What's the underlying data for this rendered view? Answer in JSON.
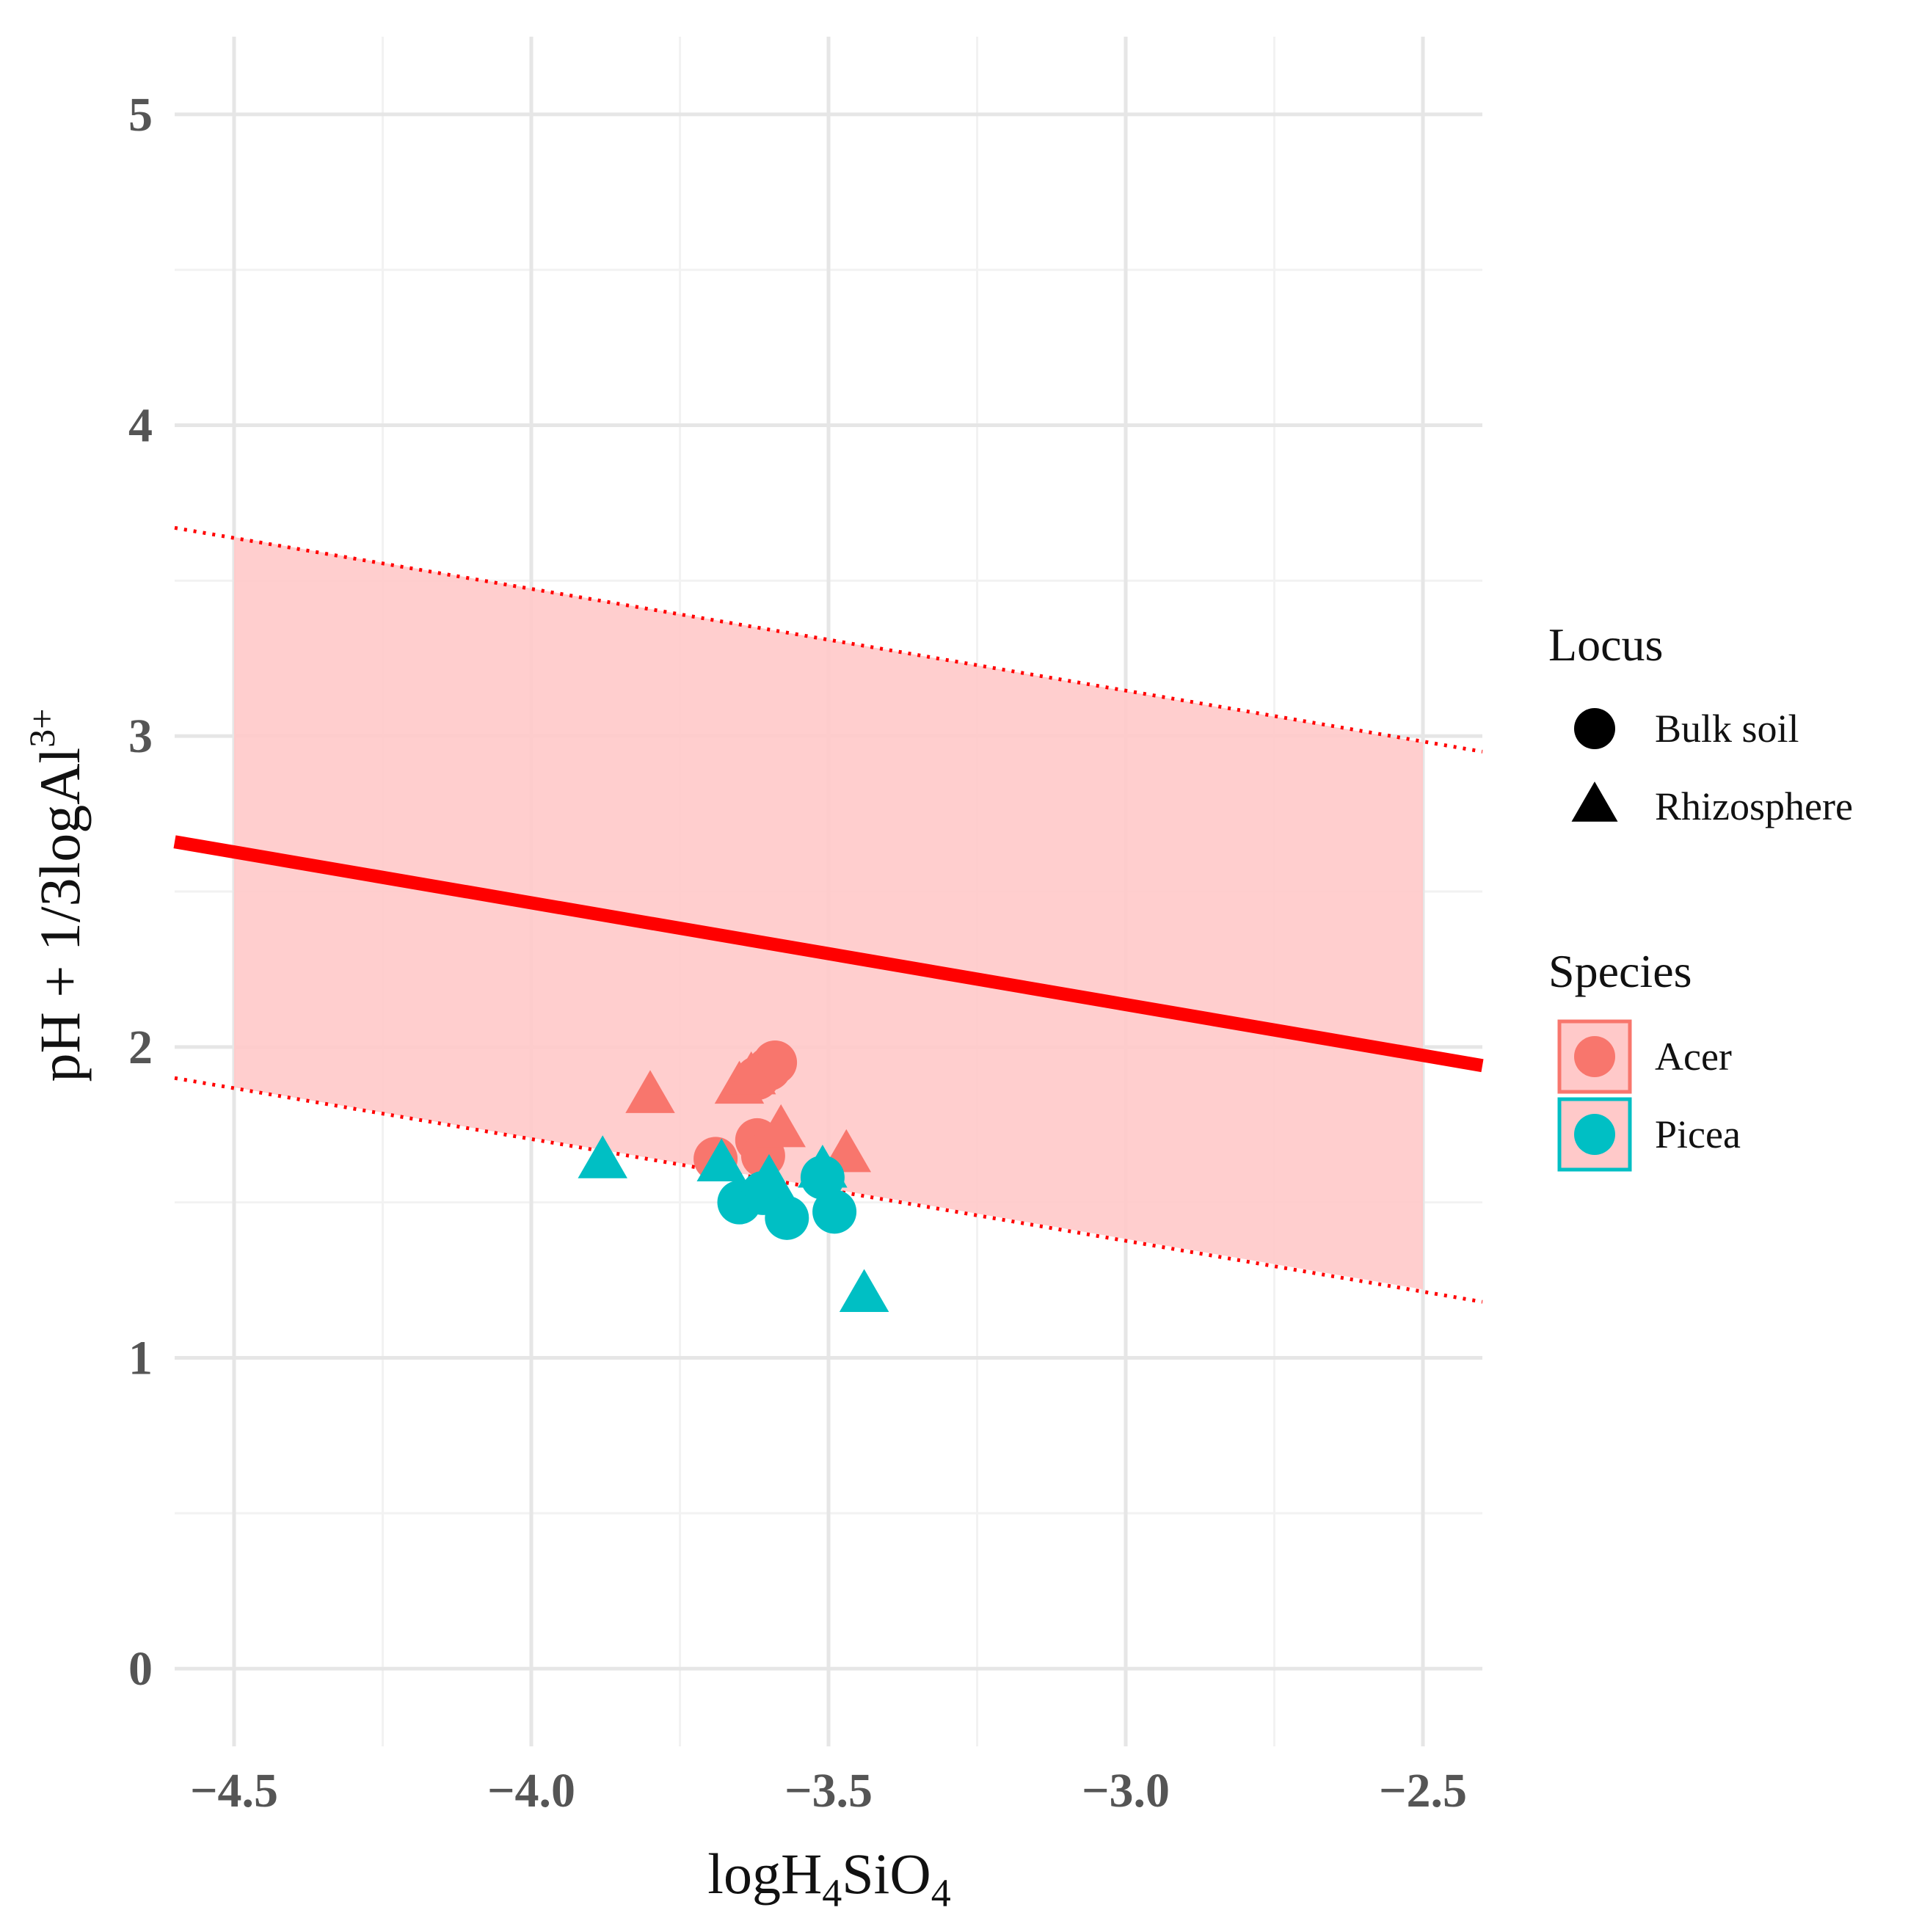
{
  "chart_data": {
    "type": "scatter",
    "x_label": {
      "main": "logH",
      "sub1": "4",
      "mid": "SiO",
      "sub2": "4"
    },
    "y_label": {
      "main": "pH + 1/3logAl",
      "sup": "3+"
    },
    "xlim": [
      -4.6,
      -2.4
    ],
    "ylim": [
      -0.25,
      5.25
    ],
    "x_ticks": [
      -4.5,
      -4.0,
      -3.5,
      -3.0,
      -2.5
    ],
    "x_tick_labels": [
      "−4.5",
      "−4.0",
      "−3.5",
      "−3.0",
      "−2.5"
    ],
    "y_ticks": [
      0,
      1,
      2,
      3,
      4,
      5
    ],
    "y_tick_labels": [
      "0",
      "1",
      "2",
      "3",
      "4",
      "5"
    ],
    "grid": true,
    "reference_line": {
      "x": [
        -4.6,
        -2.4
      ],
      "y": [
        2.66,
        1.94
      ],
      "color": "#ff0000"
    },
    "band": {
      "x": [
        -4.5,
        -2.5
      ],
      "lower": [
        1.87,
        1.22
      ],
      "upper": [
        3.64,
        2.98
      ],
      "color": "#ffc9c9"
    },
    "band_lines": {
      "x": [
        -4.6,
        -2.4
      ],
      "lower": [
        1.9,
        1.18
      ],
      "upper": [
        3.67,
        2.95
      ],
      "color": "#ff0000"
    },
    "legend_position": "right",
    "legends": [
      {
        "title": "Locus",
        "items": [
          {
            "label": "Bulk soil",
            "shape": "circle"
          },
          {
            "label": "Rhizosphere",
            "shape": "triangle"
          }
        ]
      },
      {
        "title": "Species",
        "items": [
          {
            "label": "Acer",
            "color": "#f8766d"
          },
          {
            "label": "Picea",
            "color": "#00bfc4"
          }
        ]
      }
    ],
    "series": [
      {
        "species": "Acer",
        "locus": "Bulk soil",
        "color": "#f8766d",
        "shape": "circle",
        "points": [
          [
            -3.69,
            1.64
          ],
          [
            -3.62,
            1.7
          ],
          [
            -3.61,
            1.65
          ],
          [
            -3.62,
            1.9
          ],
          [
            -3.6,
            1.93
          ],
          [
            -3.59,
            1.95
          ]
        ]
      },
      {
        "species": "Acer",
        "locus": "Rhizosphere",
        "color": "#f8766d",
        "shape": "triangle",
        "points": [
          [
            -3.8,
            1.84
          ],
          [
            -3.65,
            1.87
          ],
          [
            -3.63,
            1.9
          ],
          [
            -3.58,
            1.73
          ],
          [
            -3.47,
            1.65
          ]
        ]
      },
      {
        "species": "Picea",
        "locus": "Bulk soil",
        "color": "#00bfc4",
        "shape": "circle",
        "points": [
          [
            -3.65,
            1.5
          ],
          [
            -3.61,
            1.53
          ],
          [
            -3.57,
            1.45
          ],
          [
            -3.49,
            1.47
          ],
          [
            -3.51,
            1.58
          ]
        ]
      },
      {
        "species": "Picea",
        "locus": "Rhizosphere",
        "color": "#00bfc4",
        "shape": "triangle",
        "points": [
          [
            -3.88,
            1.63
          ],
          [
            -3.68,
            1.62
          ],
          [
            -3.6,
            1.57
          ],
          [
            -3.51,
            1.6
          ],
          [
            -3.44,
            1.2
          ]
        ]
      }
    ]
  }
}
